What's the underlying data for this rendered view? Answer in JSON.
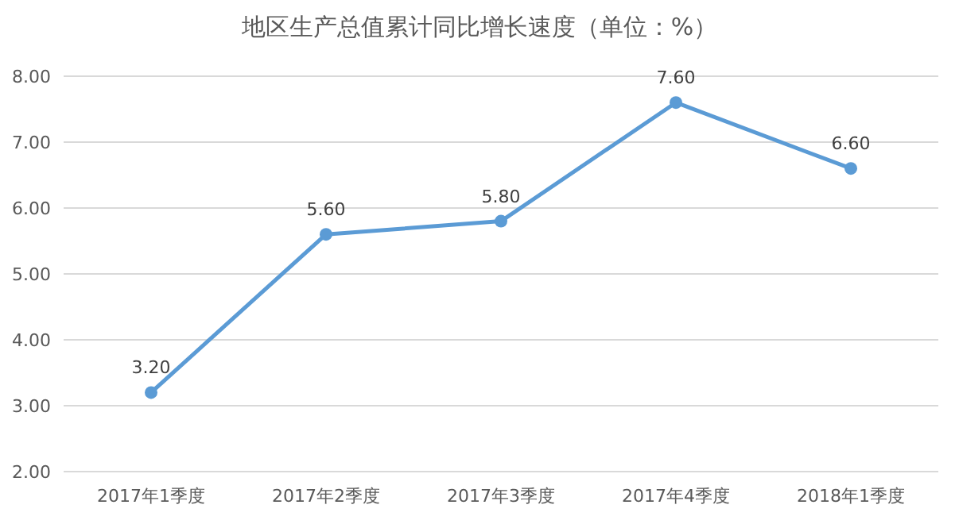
{
  "chart_data": {
    "type": "line",
    "title": "地区生产总值累计同比增长速度（单位：%）",
    "categories": [
      "2017年1季度",
      "2017年2季度",
      "2017年3季度",
      "2017年4季度",
      "2018年1季度"
    ],
    "values": [
      3.2,
      5.6,
      5.8,
      7.6,
      6.6
    ],
    "value_labels": [
      "3.20",
      "5.60",
      "5.80",
      "7.60",
      "6.60"
    ],
    "color": "#5b9bd5",
    "marker": "circle",
    "line_style": "solid",
    "grid": "y",
    "ylim": [
      2,
      8
    ],
    "yticks": [
      {
        "value": 2,
        "label": "2.00"
      },
      {
        "value": 3,
        "label": "3.00"
      },
      {
        "value": 4,
        "label": "4.00"
      },
      {
        "value": 5,
        "label": "5.00"
      },
      {
        "value": 6,
        "label": "6.00"
      },
      {
        "value": 7,
        "label": "7.00"
      },
      {
        "value": 8,
        "label": "8.00"
      }
    ]
  }
}
